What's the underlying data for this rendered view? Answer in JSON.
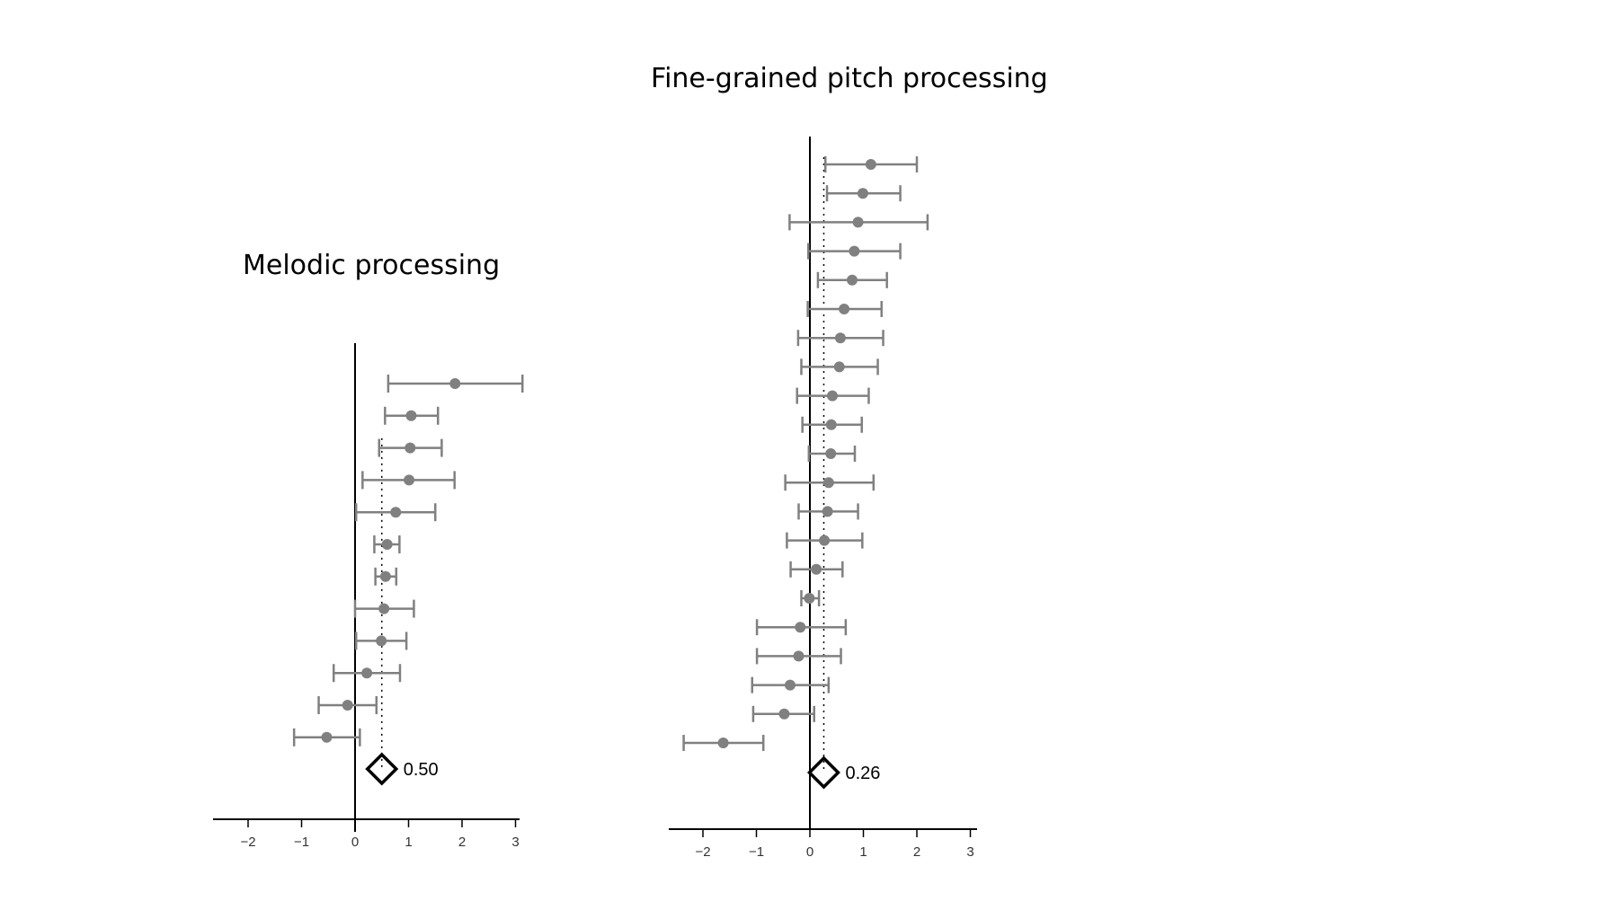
{
  "chart_data": [
    {
      "type": "forest",
      "title": "Melodic processing",
      "xlim": [
        -2.5,
        3.1
      ],
      "xticks": [
        -2,
        -1,
        0,
        1,
        2,
        3
      ],
      "xtick_labels": [
        "−2",
        "−1",
        "0",
        "1",
        "2",
        "3"
      ],
      "pooled": {
        "value": 0.5,
        "label": "0.50"
      },
      "studies": [
        {
          "est": 1.87,
          "lo": 0.62,
          "hi": 3.13
        },
        {
          "est": 1.05,
          "lo": 0.56,
          "hi": 1.55
        },
        {
          "est": 1.03,
          "lo": 0.45,
          "hi": 1.62
        },
        {
          "est": 1.01,
          "lo": 0.14,
          "hi": 1.86
        },
        {
          "est": 0.76,
          "lo": 0.02,
          "hi": 1.5
        },
        {
          "est": 0.6,
          "lo": 0.36,
          "hi": 0.83
        },
        {
          "est": 0.57,
          "lo": 0.38,
          "hi": 0.77
        },
        {
          "est": 0.54,
          "lo": 0.0,
          "hi": 1.1
        },
        {
          "est": 0.49,
          "lo": 0.02,
          "hi": 0.96
        },
        {
          "est": 0.22,
          "lo": -0.4,
          "hi": 0.84
        },
        {
          "est": -0.14,
          "lo": -0.68,
          "hi": 0.4
        },
        {
          "est": -0.53,
          "lo": -1.14,
          "hi": 0.09
        }
      ]
    },
    {
      "type": "forest",
      "title": "Fine-grained pitch processing",
      "xlim": [
        -2.6,
        3.1
      ],
      "xticks": [
        -2,
        -1,
        0,
        1,
        2,
        3
      ],
      "xtick_labels": [
        "−2",
        "−1",
        "0",
        "1",
        "2",
        "3"
      ],
      "pooled": {
        "value": 0.26,
        "label": "0.26"
      },
      "studies": [
        {
          "est": 1.14,
          "lo": 0.29,
          "hi": 2.0
        },
        {
          "est": 0.99,
          "lo": 0.32,
          "hi": 1.69
        },
        {
          "est": 0.9,
          "lo": -0.38,
          "hi": 2.2
        },
        {
          "est": 0.83,
          "lo": -0.03,
          "hi": 1.69
        },
        {
          "est": 0.79,
          "lo": 0.15,
          "hi": 1.44
        },
        {
          "est": 0.64,
          "lo": -0.04,
          "hi": 1.34
        },
        {
          "est": 0.57,
          "lo": -0.22,
          "hi": 1.37
        },
        {
          "est": 0.55,
          "lo": -0.16,
          "hi": 1.27
        },
        {
          "est": 0.42,
          "lo": -0.24,
          "hi": 1.1
        },
        {
          "est": 0.4,
          "lo": -0.14,
          "hi": 0.97
        },
        {
          "est": 0.39,
          "lo": -0.02,
          "hi": 0.84
        },
        {
          "est": 0.35,
          "lo": -0.46,
          "hi": 1.19
        },
        {
          "est": 0.33,
          "lo": -0.21,
          "hi": 0.9
        },
        {
          "est": 0.27,
          "lo": -0.43,
          "hi": 0.98
        },
        {
          "est": 0.12,
          "lo": -0.36,
          "hi": 0.61
        },
        {
          "est": -0.01,
          "lo": -0.16,
          "hi": 0.17
        },
        {
          "est": -0.18,
          "lo": -0.99,
          "hi": 0.67
        },
        {
          "est": -0.21,
          "lo": -0.99,
          "hi": 0.58
        },
        {
          "est": -0.37,
          "lo": -1.08,
          "hi": 0.35
        },
        {
          "est": -0.48,
          "lo": -1.06,
          "hi": 0.08
        },
        {
          "est": -1.62,
          "lo": -2.36,
          "hi": -0.87
        }
      ]
    }
  ]
}
